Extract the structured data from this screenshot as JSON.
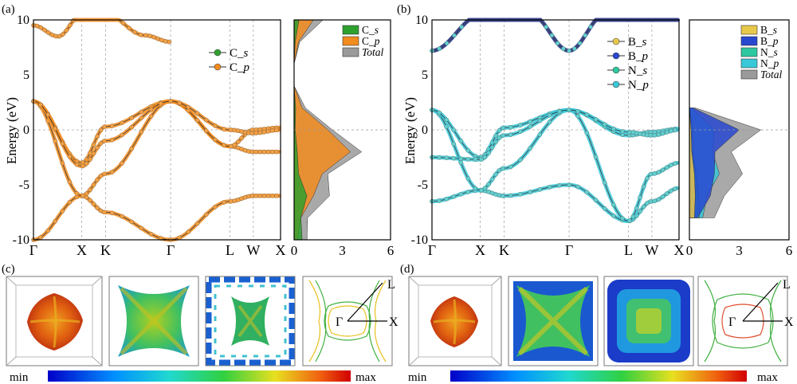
{
  "panel_labels": [
    "(a)",
    "(b)",
    "(c)",
    "(d)"
  ],
  "colors": {
    "C_s": "#2ea02e",
    "C_p": "#f28c1e",
    "B_s": "#e8c84a",
    "B_p": "#2848d0",
    "N_s": "#2ec8a0",
    "N_p": "#38c8d8",
    "total": "#9a9a9a"
  },
  "chart_data": [
    {
      "type": "line",
      "panel": "a",
      "ylabel": "Energy (eV)",
      "ylim": [
        -10,
        10
      ],
      "yticks": [
        "10",
        "5",
        "0",
        "-5",
        "-10"
      ],
      "kpath": [
        "Γ",
        "X",
        "K",
        "Γ",
        "L",
        "W",
        "X"
      ],
      "kpos": [
        0,
        0.195,
        0.292,
        0.555,
        0.795,
        0.89,
        1
      ],
      "grid": "dashed at high-symmetry points and E=0",
      "legend": [
        {
          "name": "C_s",
          "color": "#2ea02e"
        },
        {
          "name": "C_p",
          "color": "#f28c1e"
        }
      ],
      "legend_position": "top-right",
      "series": [
        {
          "name": "band1",
          "x": [
            0,
            0.195,
            0.292,
            0.555,
            0.795,
            0.89,
            1
          ],
          "y": [
            -10,
            -6,
            -7.5,
            -10,
            -6.5,
            -6,
            -6
          ]
        },
        {
          "name": "band2",
          "x": [
            0,
            0.195,
            0.292,
            0.555,
            0.795,
            0.89,
            1
          ],
          "y": [
            2.6,
            -6,
            -4,
            2.6,
            -1.5,
            -2,
            -2
          ]
        },
        {
          "name": "band3",
          "x": [
            0,
            0.195,
            0.292,
            0.555,
            0.795,
            0.89,
            1
          ],
          "y": [
            2.6,
            -3,
            0.3,
            2.6,
            -1.5,
            0,
            0.2
          ]
        },
        {
          "name": "band4",
          "x": [
            0,
            0.195,
            0.292,
            0.555,
            0.795,
            0.89,
            1
          ],
          "y": [
            2.6,
            -3.3,
            -1,
            2.6,
            0,
            -0.3,
            0
          ]
        },
        {
          "name": "cond1",
          "x": [
            0,
            0.1,
            0.195,
            0.292,
            0.45,
            0.555
          ],
          "y": [
            9.5,
            8.5,
            10.5,
            10.5,
            8.6,
            8
          ]
        }
      ]
    },
    {
      "type": "area",
      "panel": "a-dos",
      "xlim": [
        0,
        6
      ],
      "xticks": [
        "0",
        "3",
        "6"
      ],
      "legend": [
        {
          "name": "C_s",
          "color": "#2ea02e"
        },
        {
          "name": "C_p",
          "color": "#f28c1e"
        },
        {
          "name": "Total",
          "color": "#9a9a9a"
        }
      ],
      "legend_position": "top-right",
      "series": [
        {
          "name": "C_s",
          "energy": [
            -10,
            -8,
            -6,
            -4,
            -2,
            0,
            2,
            4,
            6,
            8,
            10
          ],
          "dos": [
            0.5,
            0.6,
            0.8,
            0.4,
            0.2,
            0.1,
            0.1,
            0,
            0,
            0.1,
            0.3
          ]
        },
        {
          "name": "C_p",
          "energy": [
            -10,
            -8,
            -6,
            -4,
            -2,
            0,
            2,
            4,
            6,
            8,
            10
          ],
          "dos": [
            0.2,
            0.6,
            1.2,
            2.5,
            3.5,
            3,
            0.5,
            0,
            0,
            0.4,
            1.2
          ]
        },
        {
          "name": "Total",
          "energy": [
            -10,
            -8,
            -6,
            -4,
            -2,
            0,
            2,
            4,
            6,
            8,
            10
          ],
          "dos": [
            0.8,
            1.2,
            2.2,
            3,
            4.2,
            3.4,
            0.7,
            0,
            0,
            0.5,
            1.8
          ]
        }
      ]
    },
    {
      "type": "line",
      "panel": "b",
      "ylabel": "Energy (eV)",
      "ylim": [
        -10,
        10
      ],
      "yticks": [
        "10",
        "5",
        "0",
        "-5",
        "-10"
      ],
      "kpath": [
        "Γ",
        "X",
        "K",
        "Γ",
        "L",
        "W",
        "X"
      ],
      "kpos": [
        0,
        0.195,
        0.292,
        0.555,
        0.795,
        0.89,
        1
      ],
      "legend": [
        {
          "name": "B_s",
          "color": "#e8c84a"
        },
        {
          "name": "B_p",
          "color": "#2848d0"
        },
        {
          "name": "N_s",
          "color": "#2ec8a0"
        },
        {
          "name": "N_p",
          "color": "#38c8d8"
        }
      ],
      "legend_position": "top-right",
      "series": [
        {
          "name": "band1",
          "x": [
            0,
            0.195,
            0.292,
            0.555,
            0.795,
            0.89,
            1
          ],
          "y": [
            -6.5,
            -5.5,
            -6,
            -5,
            -8.3,
            -6.5,
            -5.3
          ]
        },
        {
          "name": "band2",
          "x": [
            0,
            0.195,
            0.292,
            0.555,
            0.795,
            0.89,
            1
          ],
          "y": [
            1.8,
            -5.5,
            -3.5,
            1.8,
            -8.3,
            -4,
            -3
          ]
        },
        {
          "name": "band3",
          "x": [
            0,
            0.195,
            0.292,
            0.555,
            0.795,
            0.89,
            1
          ],
          "y": [
            1.8,
            -2.5,
            0.2,
            1.8,
            -0.5,
            -0.2,
            0.1
          ]
        },
        {
          "name": "band4",
          "x": [
            0,
            0.195,
            0.292,
            0.555,
            0.795,
            0.89,
            1
          ],
          "y": [
            -2.5,
            -2.7,
            -0.5,
            1.8,
            -0.2,
            -0.5,
            0
          ]
        },
        {
          "name": "cond1",
          "x": [
            0,
            0.2,
            0.4,
            0.555,
            0.7,
            0.9,
            1
          ],
          "y": [
            7.2,
            10.5,
            10.5,
            7.2,
            10.5,
            10.5,
            10.5
          ]
        }
      ]
    },
    {
      "type": "area",
      "panel": "b-dos",
      "xlim": [
        0,
        6
      ],
      "xticks": [
        "0",
        "3",
        "6"
      ],
      "legend": [
        {
          "name": "B_s",
          "color": "#e8c84a"
        },
        {
          "name": "B_p",
          "color": "#2848d0"
        },
        {
          "name": "N_s",
          "color": "#2ec8a0"
        },
        {
          "name": "N_p",
          "color": "#38c8d8"
        },
        {
          "name": "Total",
          "color": "#9a9a9a"
        }
      ],
      "legend_position": "top-right",
      "series": [
        {
          "name": "B_s",
          "energy": [
            -8,
            -6,
            -4,
            -2,
            0,
            2
          ],
          "dos": [
            0.3,
            0.5,
            0.3,
            0.2,
            0.1,
            0
          ]
        },
        {
          "name": "B_p",
          "energy": [
            -8,
            -6,
            -4,
            -2,
            0,
            2
          ],
          "dos": [
            0.5,
            1.8,
            1.5,
            2.2,
            3,
            0.3
          ]
        },
        {
          "name": "N_s",
          "energy": [
            -8,
            -6,
            -4,
            -2,
            0,
            2
          ],
          "dos": [
            0.6,
            0.8,
            0.4,
            0.3,
            0.2,
            0
          ]
        },
        {
          "name": "N_p",
          "energy": [
            -8,
            -6,
            -4,
            -2,
            0,
            2
          ],
          "dos": [
            0.8,
            1.5,
            1.8,
            2,
            1.5,
            0.2
          ]
        },
        {
          "name": "Total",
          "energy": [
            -8,
            -6,
            -4,
            -2,
            0,
            2
          ],
          "dos": [
            1.5,
            3,
            3.2,
            3.6,
            4.3,
            0.5
          ]
        }
      ]
    }
  ],
  "fermi_surface": {
    "c_brillouin_labels": {
      "gamma": "Γ",
      "L": "L",
      "X": "X"
    },
    "d_brillouin_labels": {
      "gamma": "Γ",
      "L": "L",
      "X": "X"
    },
    "colorbar": {
      "min": "min",
      "max": "max"
    }
  }
}
